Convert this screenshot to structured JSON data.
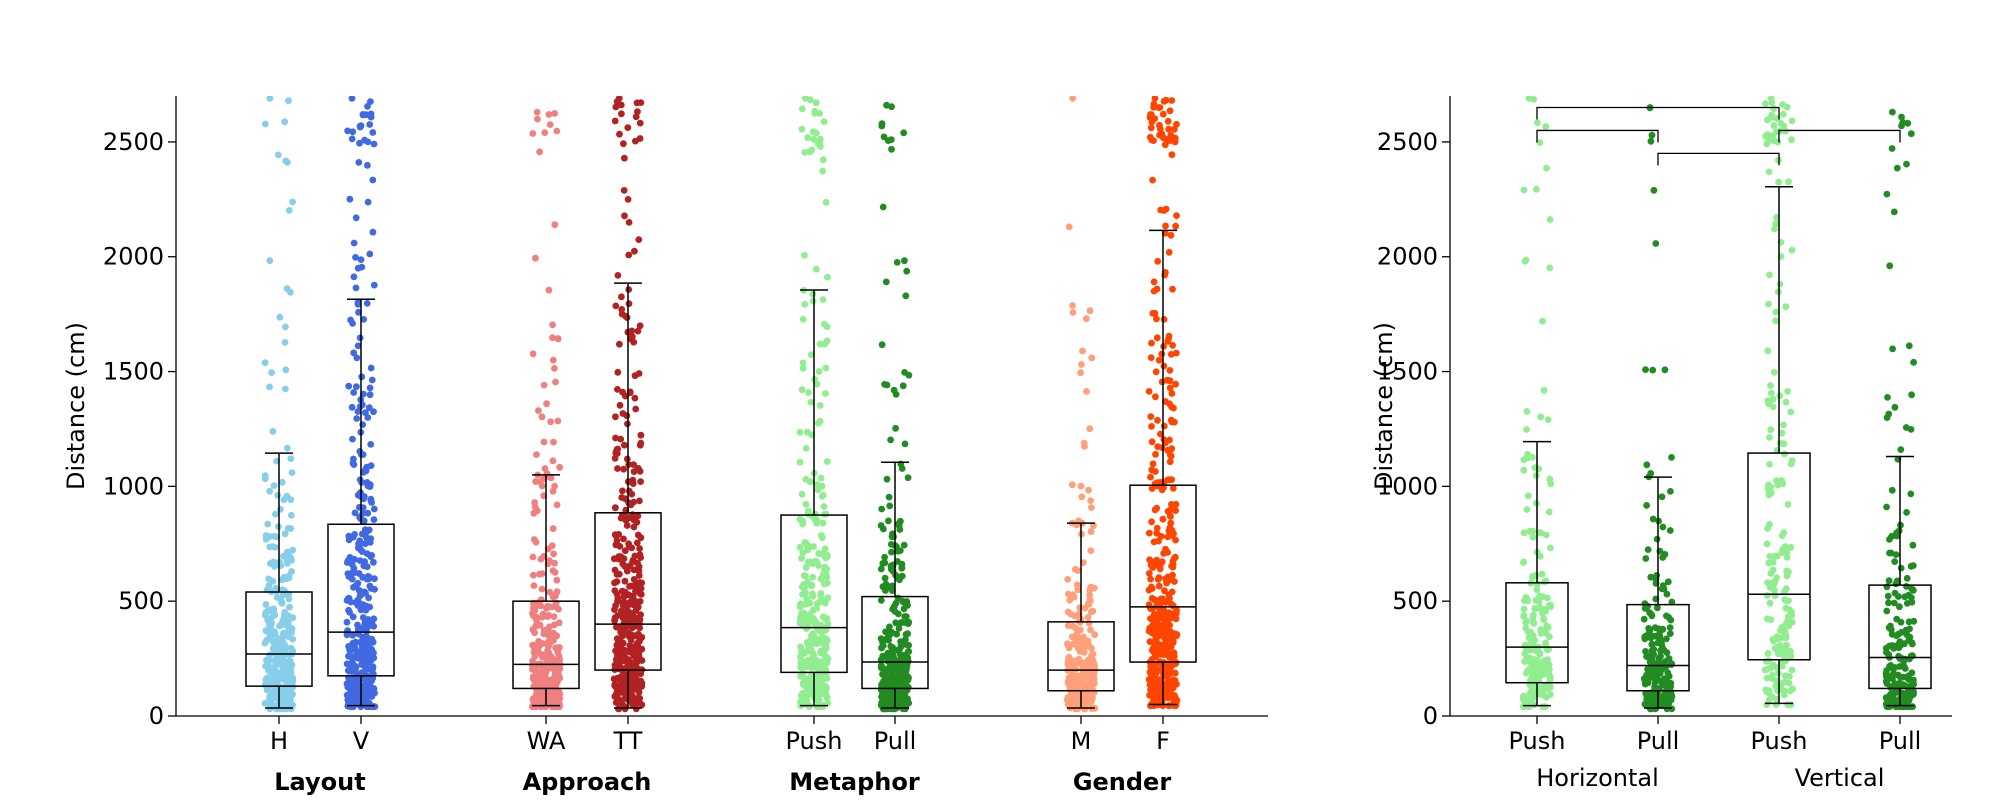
{
  "chart_data": [
    {
      "type": "box-strip",
      "ylabel": "Distance (cm)",
      "ylim": [
        0,
        2700
      ],
      "yticks": [
        0,
        500,
        1000,
        1500,
        2000,
        2500
      ],
      "groups": [
        {
          "label": "Layout",
          "boxes": [
            {
              "category": "H",
              "color": "#87CEEB",
              "whisker_low": 35,
              "q1": 130,
              "median": 270,
              "q3": 540,
              "whisker_high": 1145,
              "n_points": 320,
              "max_value": 2690
            },
            {
              "category": "V",
              "color": "#4169E1",
              "whisker_low": 45,
              "q1": 175,
              "median": 365,
              "q3": 835,
              "whisker_high": 1815,
              "n_points": 380,
              "max_value": 2690
            }
          ]
        },
        {
          "label": "Approach",
          "boxes": [
            {
              "category": "WA",
              "color": "#F08080",
              "whisker_low": 45,
              "q1": 120,
              "median": 225,
              "q3": 500,
              "whisker_high": 1050,
              "n_points": 330,
              "max_value": 2630
            },
            {
              "category": "TT",
              "color": "#B22222",
              "whisker_low": 35,
              "q1": 200,
              "median": 400,
              "q3": 885,
              "whisker_high": 1885,
              "n_points": 400,
              "max_value": 2690
            }
          ]
        },
        {
          "label": "Metaphor",
          "boxes": [
            {
              "category": "Push",
              "color": "#90EE90",
              "whisker_low": 45,
              "q1": 190,
              "median": 385,
              "q3": 875,
              "whisker_high": 1855,
              "n_points": 360,
              "max_value": 2690
            },
            {
              "category": "Pull",
              "color": "#228B22",
              "whisker_low": 35,
              "q1": 120,
              "median": 235,
              "q3": 520,
              "whisker_high": 1105,
              "n_points": 360,
              "max_value": 2660
            }
          ]
        },
        {
          "label": "Gender",
          "boxes": [
            {
              "category": "M",
              "color": "#FFA07A",
              "whisker_low": 35,
              "q1": 110,
              "median": 200,
              "q3": 410,
              "whisker_high": 840,
              "n_points": 300,
              "max_value": 2690
            },
            {
              "category": "F",
              "color": "#FF4500",
              "whisker_low": 50,
              "q1": 235,
              "median": 475,
              "q3": 1005,
              "whisker_high": 2115,
              "n_points": 420,
              "max_value": 2690
            }
          ]
        }
      ]
    },
    {
      "type": "box-strip",
      "ylabel": "Distance (cm)",
      "ylim": [
        0,
        2700
      ],
      "yticks": [
        0,
        500,
        1000,
        1500,
        2000,
        2500
      ],
      "groups": [
        {
          "label": "Horizontal",
          "boxes": [
            {
              "category": "Push",
              "color": "#90EE90",
              "whisker_low": 45,
              "q1": 145,
              "median": 300,
              "q3": 580,
              "whisker_high": 1195,
              "n_points": 200,
              "max_value": 2690
            },
            {
              "category": "Pull",
              "color": "#228B22",
              "whisker_low": 35,
              "q1": 110,
              "median": 220,
              "q3": 485,
              "whisker_high": 1040,
              "n_points": 200,
              "max_value": 2650
            }
          ]
        },
        {
          "label": "Vertical",
          "boxes": [
            {
              "category": "Push",
              "color": "#90EE90",
              "whisker_low": 55,
              "q1": 245,
              "median": 530,
              "q3": 1145,
              "whisker_high": 2305,
              "n_points": 200,
              "max_value": 2690
            },
            {
              "category": "Pull",
              "color": "#228B22",
              "whisker_low": 45,
              "q1": 120,
              "median": 255,
              "q3": 570,
              "whisker_high": 1130,
              "n_points": 200,
              "max_value": 2630
            }
          ]
        }
      ],
      "significance_brackets": [
        {
          "from": 0,
          "to": 2,
          "y": 2650
        },
        {
          "from": 0,
          "to": 1,
          "y": 2550
        },
        {
          "from": 2,
          "to": 3,
          "y": 2550
        },
        {
          "from": 1,
          "to": 2,
          "y": 2450
        }
      ]
    }
  ]
}
